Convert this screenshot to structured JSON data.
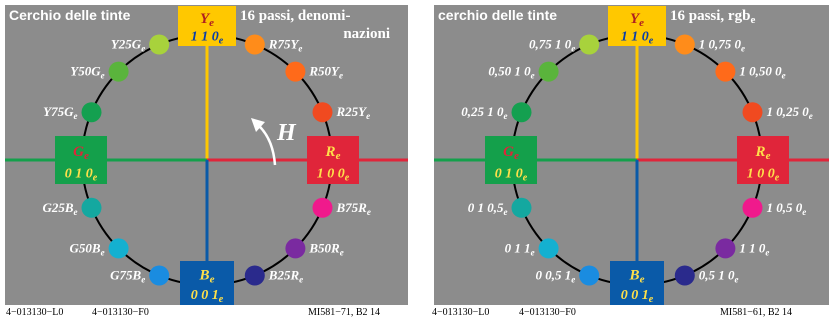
{
  "colors": {
    "panel_bg": "#8c8c8c",
    "circle_line": "#000000",
    "axis_yellow": "#ffc800",
    "axis_red": "#e0253a",
    "axis_green": "#14a04b",
    "axis_blue": "#0a5aa8",
    "label_white": "#ffffff",
    "box_text_yellow": "#ffe04a"
  },
  "panels": [
    {
      "title": "Cerchio delle tinte",
      "subtitle_lines": [
        "16 passi, denomi-",
        "nazioni"
      ],
      "rotation_label": "H",
      "footer": {
        "left1": "4−013130−L0",
        "left2": "4−013130−F0",
        "right": "MI581−71, B2 14"
      },
      "boxes": {
        "Y": {
          "name": "Y",
          "sub": "e",
          "code": "1 1 0",
          "code_sub": "e",
          "color": "#ffc800",
          "name_color": "#b02020",
          "code_color": "#0a3fa8"
        },
        "R": {
          "name": "R",
          "sub": "e",
          "code": "1 0 0",
          "code_sub": "e",
          "color": "#e0253a",
          "name_color": "#ffe04a",
          "code_color": "#ffe04a"
        },
        "G": {
          "name": "G",
          "sub": "e",
          "code": "0 1 0",
          "code_sub": "e",
          "color": "#14a04b",
          "name_color": "#e0253a",
          "code_color": "#ffe04a"
        },
        "B": {
          "name": "B",
          "sub": "e",
          "code": "0 0 1",
          "code_sub": "e",
          "color": "#0a5aa8",
          "name_color": "#ffe04a",
          "code_color": "#ffe04a"
        }
      },
      "dots": [
        {
          "angle": 22.5,
          "color": "#ff8c1a",
          "label": "R75Y",
          "sub": "e",
          "side": "right"
        },
        {
          "angle": 45,
          "color": "#ff6a1a",
          "label": "R50Y",
          "sub": "e",
          "side": "right"
        },
        {
          "angle": 67.5,
          "color": "#f04a20",
          "label": "R25Y",
          "sub": "e",
          "side": "right"
        },
        {
          "angle": 112.5,
          "color": "#f01a8c",
          "label": "B75R",
          "sub": "e",
          "side": "right"
        },
        {
          "angle": 135,
          "color": "#7a2aa0",
          "label": "B50R",
          "sub": "e",
          "side": "right"
        },
        {
          "angle": 157.5,
          "color": "#2a2a8c",
          "label": "B25R",
          "sub": "e",
          "side": "right"
        },
        {
          "angle": 202.5,
          "color": "#1a8ce0",
          "label": "G75B",
          "sub": "e",
          "side": "left"
        },
        {
          "angle": 225,
          "color": "#14b0d0",
          "label": "G50B",
          "sub": "e",
          "side": "left"
        },
        {
          "angle": 247.5,
          "color": "#14a8a0",
          "label": "G25B",
          "sub": "e",
          "side": "left"
        },
        {
          "angle": 292.5,
          "color": "#14a050",
          "label": "Y75G",
          "sub": "e",
          "side": "left"
        },
        {
          "angle": 315,
          "color": "#5ab43c",
          "label": "Y50G",
          "sub": "e",
          "side": "left"
        },
        {
          "angle": 337.5,
          "color": "#a8d23c",
          "label": "Y25G",
          "sub": "e",
          "side": "left"
        }
      ]
    },
    {
      "title": "cerchio delle tinte",
      "subtitle_lines": [
        "16 passi, rgb"
      ],
      "subtitle_sub": "e",
      "rotation_label": "",
      "footer": {
        "left1": "4−013130−L0",
        "left2": "4−013130−F0",
        "right": "MI581−61, B2 14"
      },
      "boxes": {
        "Y": {
          "name": "Y",
          "sub": "e",
          "code": "1 1 0",
          "code_sub": "e",
          "color": "#ffc800",
          "name_color": "#b02020",
          "code_color": "#0a3fa8"
        },
        "R": {
          "name": "R",
          "sub": "e",
          "code": "1 0 0",
          "code_sub": "e",
          "color": "#e0253a",
          "name_color": "#ffe04a",
          "code_color": "#ffe04a"
        },
        "G": {
          "name": "G",
          "sub": "e",
          "code": "0 1 0",
          "code_sub": "e",
          "color": "#14a04b",
          "name_color": "#e0253a",
          "code_color": "#ffe04a"
        },
        "B": {
          "name": "B",
          "sub": "e",
          "code": "0 0 1",
          "code_sub": "e",
          "color": "#0a5aa8",
          "name_color": "#ffe04a",
          "code_color": "#ffe04a"
        }
      },
      "dots": [
        {
          "angle": 22.5,
          "color": "#ff8c1a",
          "label": "1 0,75 0",
          "sub": "e",
          "side": "right"
        },
        {
          "angle": 45,
          "color": "#ff6a1a",
          "label": "1 0,50 0",
          "sub": "e",
          "side": "right"
        },
        {
          "angle": 67.5,
          "color": "#f04a20",
          "label": "1 0,25 0",
          "sub": "e",
          "side": "right"
        },
        {
          "angle": 112.5,
          "color": "#f01a8c",
          "label": "1 0,5 0",
          "sub": "e",
          "side": "right"
        },
        {
          "angle": 135,
          "color": "#7a2aa0",
          "label": "1 1 0",
          "sub": "e",
          "side": "right"
        },
        {
          "angle": 157.5,
          "color": "#2a2a8c",
          "label": "0,5 1 0",
          "sub": "e",
          "side": "right"
        },
        {
          "angle": 202.5,
          "color": "#1a8ce0",
          "label": "0 0,5 1",
          "sub": "e",
          "side": "left"
        },
        {
          "angle": 225,
          "color": "#14b0d0",
          "label": "0 1 1",
          "sub": "e",
          "side": "left"
        },
        {
          "angle": 247.5,
          "color": "#14a8a0",
          "label": "0 1 0,5",
          "sub": "e",
          "side": "left"
        },
        {
          "angle": 292.5,
          "color": "#14a050",
          "label": "0,25 1 0",
          "sub": "e",
          "side": "left"
        },
        {
          "angle": 315,
          "color": "#5ab43c",
          "label": "0,50 1 0",
          "sub": "e",
          "side": "left"
        },
        {
          "angle": 337.5,
          "color": "#a8d23c",
          "label": "0,75 1 0",
          "sub": "e",
          "side": "left"
        }
      ]
    }
  ]
}
